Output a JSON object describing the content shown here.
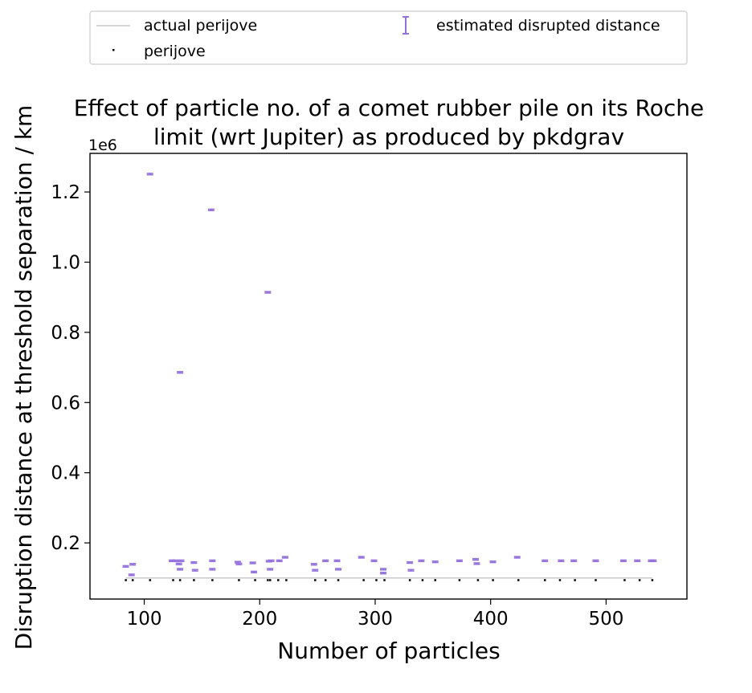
{
  "chart_data": {
    "type": "scatter",
    "title_line1": "Effect of particle no. of a comet rubber pile on its Roche",
    "title_line2": "limit (wrt Jupiter) as produced by pkdgrav",
    "xlabel": "Number of particles",
    "ylabel": "Disruption distance at threshold separation / km",
    "y_exponent_label": "1e6",
    "xlim": [
      53,
      570
    ],
    "ylim": [
      40000,
      1310000
    ],
    "x_ticks": [
      100,
      200,
      300,
      400,
      500
    ],
    "y_ticks": [
      200000,
      400000,
      600000,
      800000,
      1000000,
      1200000
    ],
    "x_tick_labels": [
      "100",
      "200",
      "300",
      "400",
      "500"
    ],
    "y_tick_labels": [
      "0.2",
      "0.4",
      "0.6",
      "0.8",
      "1.0",
      "1.2"
    ],
    "grid": false,
    "legend": {
      "placement": "upper center, outside plot",
      "entries": [
        "actual perijove",
        "perijove",
        "estimated disrupted distance"
      ]
    },
    "colors": {
      "actual_perijove": "#c8c8c8",
      "perijove": "#000000",
      "estimated": "#9370db"
    },
    "actual_perijove": {
      "x": [
        84,
        540
      ],
      "y": [
        100000,
        100000
      ]
    },
    "perijove": {
      "x": [
        84,
        90,
        105,
        125,
        131,
        143,
        159,
        182,
        196,
        207,
        209,
        216,
        223,
        248,
        257,
        268,
        290,
        301,
        308,
        330,
        341,
        352,
        373,
        389,
        402,
        424,
        447,
        460,
        473,
        491,
        516,
        529,
        540
      ],
      "y": [
        94000,
        94000,
        94000,
        94000,
        94000,
        94000,
        94000,
        94000,
        94000,
        94000,
        94000,
        94000,
        94000,
        94000,
        94000,
        94000,
        94000,
        94000,
        94000,
        94000,
        94000,
        94000,
        94000,
        94000,
        94000,
        94000,
        94000,
        94000,
        94000,
        94000,
        94000,
        94000,
        94000
      ]
    },
    "estimated": {
      "x": [
        84,
        89,
        90,
        105,
        124,
        127,
        130,
        131,
        131,
        132,
        143,
        144,
        158,
        159,
        159,
        181,
        182,
        194,
        195,
        207,
        208,
        209,
        210,
        217,
        222,
        247,
        248,
        257,
        267,
        268,
        288,
        299,
        307,
        307,
        330,
        331,
        340,
        352,
        373,
        387,
        388,
        402,
        423,
        447,
        461,
        472,
        491,
        515,
        527,
        539,
        541
      ],
      "y": [
        133000,
        109000,
        139000,
        1251000,
        149000,
        149000,
        140000,
        686000,
        125000,
        149000,
        144000,
        122000,
        1149000,
        149000,
        125000,
        145000,
        140000,
        143000,
        117000,
        914000,
        148000,
        125000,
        149000,
        149000,
        159000,
        139000,
        122000,
        149000,
        149000,
        125000,
        159000,
        149000,
        125000,
        114000,
        144000,
        122000,
        149000,
        146000,
        149000,
        153000,
        141000,
        146000,
        159000,
        149000,
        149000,
        149000,
        149000,
        149000,
        149000,
        149000,
        149000
      ],
      "yerr": 2000
    }
  }
}
